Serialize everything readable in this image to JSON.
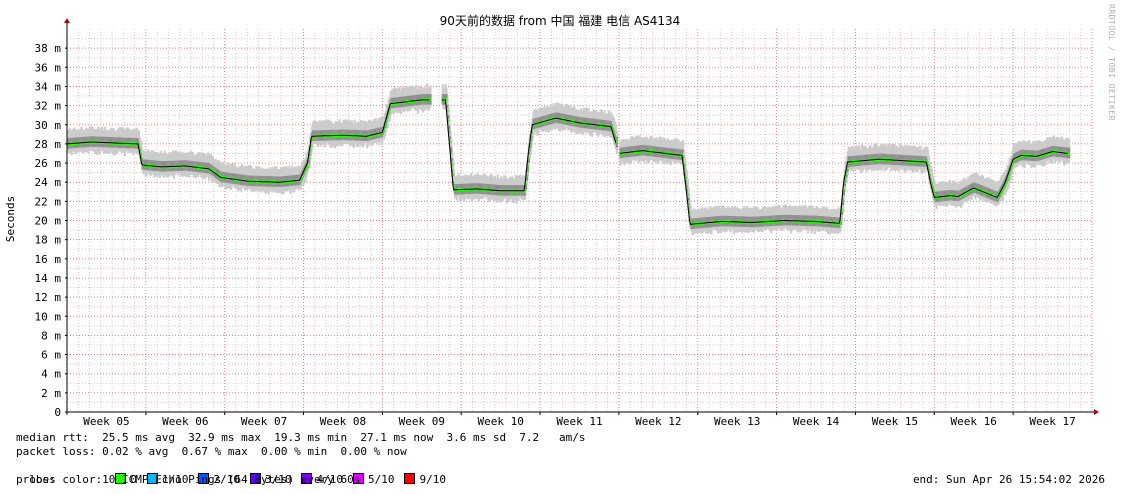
{
  "chart_data": {
    "type": "line",
    "title": "90天前的数据 from 中国 福建 电信 AS4134",
    "ylabel": "Seconds",
    "ylim": [
      0,
      40
    ],
    "xlim": [
      0,
      13
    ],
    "yticks": [
      0,
      2,
      4,
      6,
      8,
      10,
      12,
      14,
      16,
      18,
      20,
      22,
      24,
      26,
      28,
      30,
      32,
      34,
      36,
      38
    ],
    "ytick_labels": [
      "0",
      "2 m",
      "4 m",
      "6 m",
      "8 m",
      "10 m",
      "12 m",
      "14 m",
      "16 m",
      "18 m",
      "20 m",
      "22 m",
      "24 m",
      "26 m",
      "28 m",
      "30 m",
      "32 m",
      "34 m",
      "36 m",
      "38 m"
    ],
    "categories": [
      "Week 05",
      "Week 06",
      "Week 07",
      "Week 08",
      "Week 09",
      "Week 10",
      "Week 11",
      "Week 12",
      "Week 13",
      "Week 14",
      "Week 15",
      "Week 16",
      "Week 17"
    ],
    "grid": true,
    "series": [
      {
        "values": [
          [
            0.0,
            28.0
          ],
          [
            0.3,
            28.2
          ],
          [
            0.6,
            28.1
          ],
          [
            0.9,
            28.0
          ],
          [
            0.95,
            25.8
          ],
          [
            1.2,
            25.6
          ],
          [
            1.5,
            25.7
          ],
          [
            1.8,
            25.4
          ],
          [
            1.95,
            24.5
          ],
          [
            2.3,
            24.1
          ],
          [
            2.7,
            24.0
          ],
          [
            2.95,
            24.2
          ],
          [
            3.05,
            26.0
          ],
          [
            3.1,
            28.8
          ],
          [
            3.5,
            28.9
          ],
          [
            3.8,
            28.8
          ],
          [
            4.0,
            29.2
          ],
          [
            4.1,
            32.2
          ],
          [
            4.2,
            32.3
          ],
          [
            4.5,
            32.6
          ],
          [
            4.8,
            32.6
          ],
          [
            4.85,
            28.0
          ],
          [
            4.9,
            23.2
          ],
          [
            5.2,
            23.3
          ],
          [
            5.5,
            23.1
          ],
          [
            5.8,
            23.1
          ],
          [
            5.85,
            27.0
          ],
          [
            5.9,
            30.0
          ],
          [
            6.2,
            30.7
          ],
          [
            6.5,
            30.2
          ],
          [
            6.9,
            29.8
          ],
          [
            7.0,
            27.0
          ],
          [
            7.3,
            27.3
          ],
          [
            7.6,
            27.0
          ],
          [
            7.8,
            26.8
          ],
          [
            7.85,
            23.5
          ],
          [
            7.9,
            19.6
          ],
          [
            8.3,
            19.9
          ],
          [
            8.7,
            19.8
          ],
          [
            9.1,
            20.0
          ],
          [
            9.5,
            19.9
          ],
          [
            9.8,
            19.7
          ],
          [
            9.85,
            24.0
          ],
          [
            9.9,
            26.1
          ],
          [
            10.3,
            26.4
          ],
          [
            10.7,
            26.2
          ],
          [
            10.9,
            26.1
          ],
          [
            10.95,
            24.0
          ],
          [
            11.0,
            22.4
          ],
          [
            11.2,
            22.6
          ],
          [
            11.3,
            22.5
          ],
          [
            11.5,
            23.4
          ],
          [
            11.8,
            22.4
          ],
          [
            11.9,
            24.0
          ],
          [
            12.0,
            26.4
          ],
          [
            12.1,
            26.8
          ],
          [
            12.3,
            26.7
          ],
          [
            12.5,
            27.2
          ],
          [
            12.7,
            27.0
          ]
        ],
        "gaps": [
          [
            4.6,
            4.75
          ],
          [
            6.96,
            7.0
          ]
        ]
      }
    ],
    "loss_colors": [
      {
        "label": "0",
        "color": "#26ff00"
      },
      {
        "label": "1/10",
        "color": "#00b8ff"
      },
      {
        "label": "2/10",
        "color": "#0059ff"
      },
      {
        "label": "3/10",
        "color": "#5e00ff"
      },
      {
        "label": "4/10",
        "color": "#7e00ff"
      },
      {
        "label": "5/10",
        "color": "#dd00ff"
      },
      {
        "label": "9/10",
        "color": "#ff0000"
      }
    ],
    "colors": {
      "grid_minor": "#e5c0c0",
      "grid_major": "#e08080",
      "axis_arrow": "#a01010",
      "median": "#000000",
      "smoke": "#a0a0a0"
    }
  },
  "stats": {
    "median_rtt": "median rtt:  25.5 ms avg  32.9 ms max  19.3 ms min  27.1 ms now  3.6 ms sd  7.2   am/s",
    "packet_loss": "packet loss: 0.02 % avg  0.67 % max  0.00 % min  0.00 % now",
    "loss_color_label": "loss color:",
    "probe": "probe:       10 ICMP Echo Pings (64 Bytes) every 60s",
    "end": "end: Sun Apr 26 15:54:02 2026"
  },
  "watermark": "RRDTOOL / TOBI OETIKER"
}
